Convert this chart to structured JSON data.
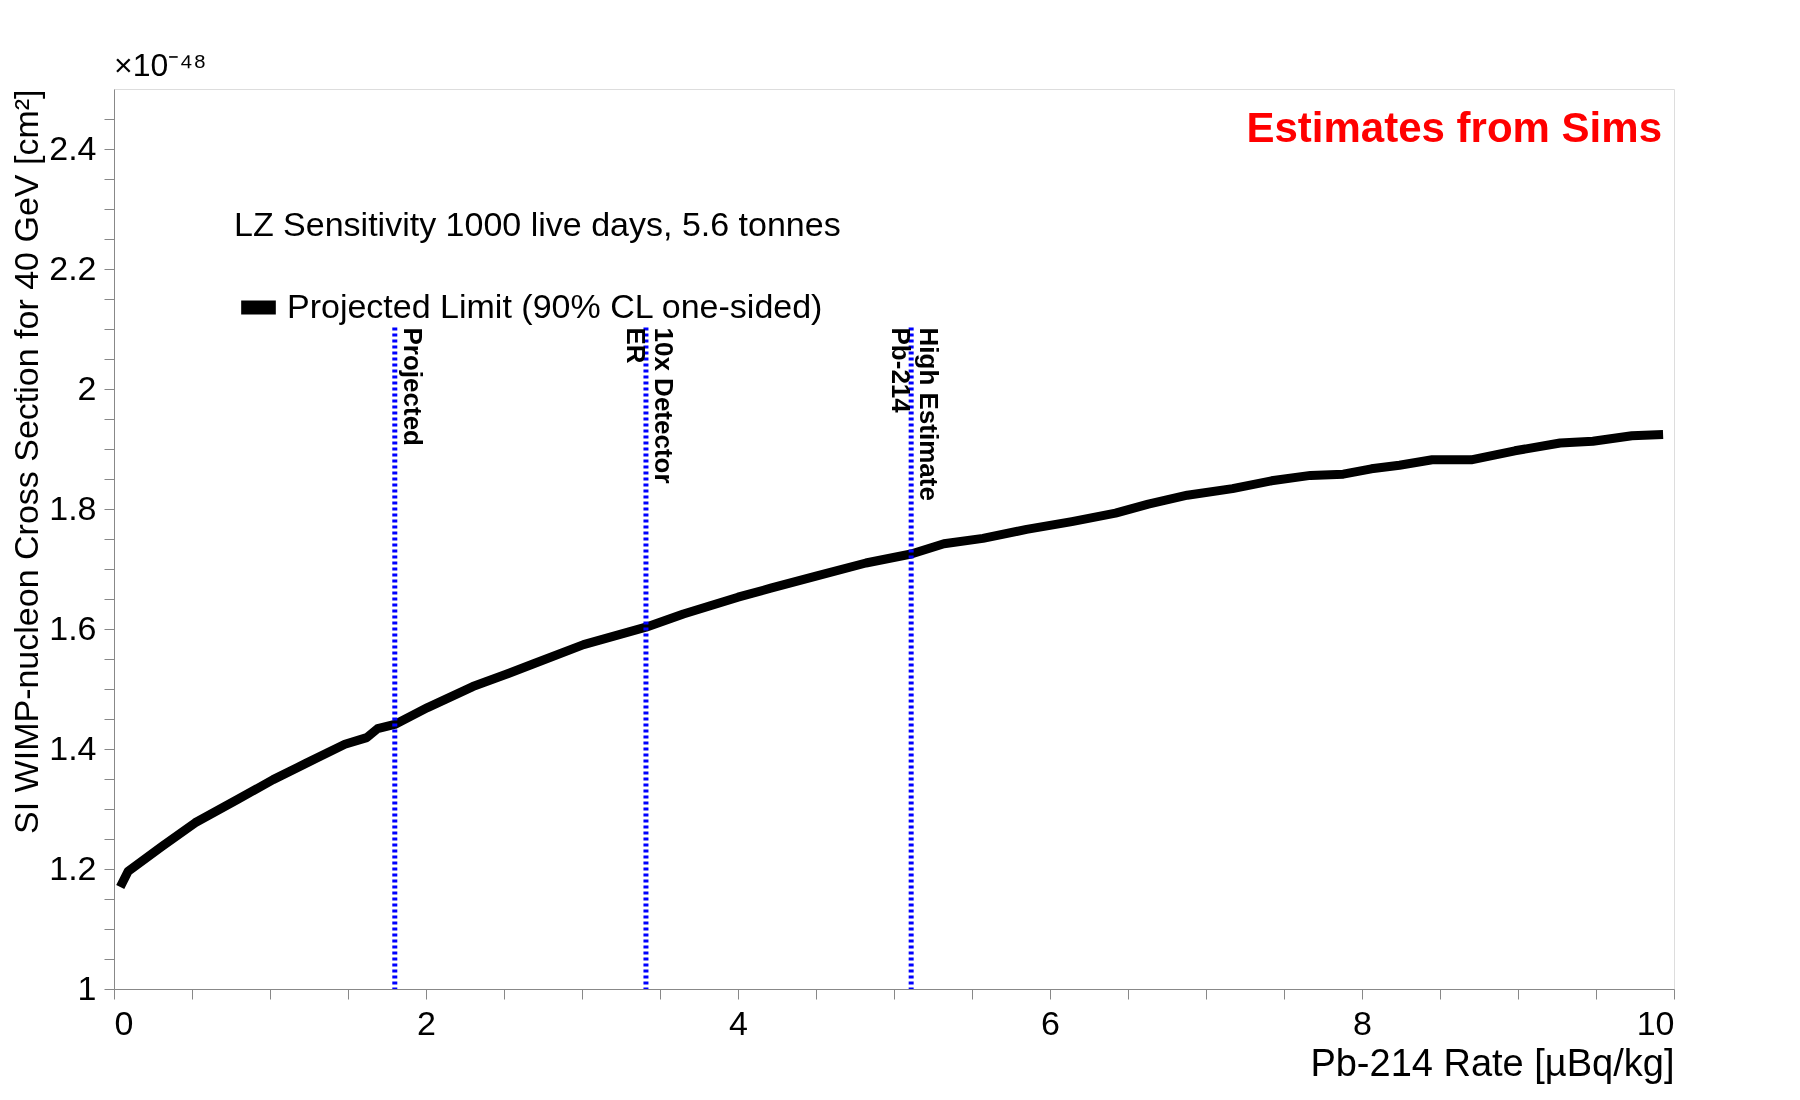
{
  "chart_data": {
    "type": "line",
    "xlabel": "Pb-214 Rate [µBq/kg]",
    "ylabel": "SI WIMP-nucleon Cross Section for 40 GeV [cm²]",
    "legend_title": "LZ Sensitivity 1000 live days, 5.6 tonnes",
    "legend": "top left",
    "annotations": [
      "×10⁻⁴⁸",
      "Estimates from Sims"
    ],
    "xlim": [
      0,
      10
    ],
    "ylim": [
      1,
      2.5
    ],
    "xticks": [
      0,
      {
        "value": 0.5,
        "label": null
      },
      {
        "value": 1,
        "label": null
      },
      {
        "value": 1.5,
        "label": null
      },
      2,
      {
        "value": 2.5,
        "label": null
      },
      {
        "value": 3,
        "label": null
      },
      {
        "value": 3.5,
        "label": null
      },
      4,
      {
        "value": 4.5,
        "label": null
      },
      {
        "value": 5,
        "label": null
      },
      {
        "value": 5.5,
        "label": null
      },
      6,
      {
        "value": 6.5,
        "label": null
      },
      {
        "value": 7,
        "label": null
      },
      {
        "value": 7.5,
        "label": null
      },
      8,
      {
        "value": 8.5,
        "label": null
      },
      {
        "value": 9,
        "label": null
      },
      {
        "value": 9.5,
        "label": null
      },
      10
    ],
    "yticks": [
      1,
      {
        "value": 1.05,
        "label": null
      },
      {
        "value": 1.1,
        "label": null
      },
      {
        "value": 1.15,
        "label": null
      },
      1.2,
      {
        "value": 1.25,
        "label": null
      },
      {
        "value": 1.3,
        "label": null
      },
      {
        "value": 1.35,
        "label": null
      },
      1.4,
      {
        "value": 1.45,
        "label": null
      },
      {
        "value": 1.5,
        "label": null
      },
      {
        "value": 1.55,
        "label": null
      },
      1.6,
      {
        "value": 1.65,
        "label": null
      },
      {
        "value": 1.7,
        "label": null
      },
      {
        "value": 1.75,
        "label": null
      },
      1.8,
      {
        "value": 1.85,
        "label": null
      },
      {
        "value": 1.9,
        "label": null
      },
      {
        "value": 1.95,
        "label": null
      },
      2,
      {
        "value": 2.05,
        "label": null
      },
      {
        "value": 2.1,
        "label": null
      },
      {
        "value": 2.15,
        "label": null
      },
      2.2,
      {
        "value": 2.25,
        "label": null
      },
      {
        "value": 2.3,
        "label": null
      },
      {
        "value": 2.35,
        "label": null
      },
      2.4,
      {
        "value": 2.45,
        "label": null
      }
    ],
    "grid": false,
    "marker": "none",
    "line_style": "solid",
    "series": [
      {
        "name": "Projected Limit (90% CL one-sided)",
        "color": "#000000",
        "x": [
          0.04,
          0.09,
          0.31,
          0.52,
          0.8,
          1.02,
          1.23,
          1.48,
          1.62,
          1.69,
          1.8,
          2.01,
          2.3,
          2.51,
          2.69,
          3.01,
          3.41,
          3.65,
          4.0,
          4.21,
          4.5,
          4.82,
          5.11,
          5.32,
          5.57,
          5.85,
          6.14,
          6.42,
          6.63,
          6.88,
          7.17,
          7.42,
          7.67,
          7.88,
          8.06,
          8.24,
          8.45,
          8.7,
          8.98,
          9.27,
          9.48,
          9.73,
          9.93
        ],
        "values": [
          1.17,
          1.196,
          1.238,
          1.277,
          1.317,
          1.349,
          1.376,
          1.408,
          1.419,
          1.434,
          1.441,
          1.469,
          1.504,
          1.524,
          1.542,
          1.574,
          1.603,
          1.625,
          1.653,
          1.668,
          1.688,
          1.71,
          1.725,
          1.742,
          1.751,
          1.766,
          1.779,
          1.793,
          1.808,
          1.823,
          1.834,
          1.847,
          1.856,
          1.858,
          1.867,
          1.873,
          1.882,
          1.882,
          1.897,
          1.91,
          1.913,
          1.922,
          1.924
        ]
      }
    ],
    "ref_lines": [
      {
        "axis": "x",
        "value": 1.8,
        "label": "Projected",
        "color": "#0000ff",
        "line_style": "dotted"
      },
      {
        "axis": "x",
        "value": 3.41,
        "label": "10x Detector ER",
        "color": "#0000ff",
        "line_style": "dotted"
      },
      {
        "axis": "x",
        "value": 5.11,
        "label": "High Estimate  Pb-214",
        "color": "#0000ff",
        "line_style": "dotted"
      }
    ]
  }
}
